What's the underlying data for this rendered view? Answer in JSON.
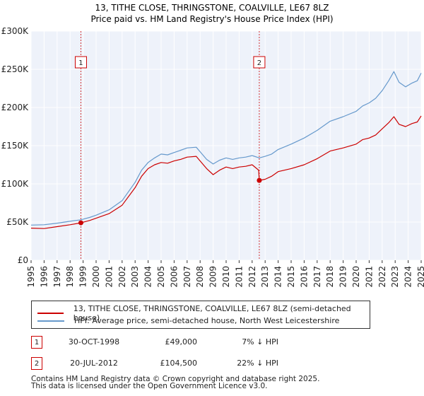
{
  "colors": {
    "property": "#cc0000",
    "hpi": "#6699cc",
    "plot_bg": "#eef2fa",
    "grid": "#ffffff",
    "marker_line": "#cc0000"
  },
  "chart_data": {
    "type": "line",
    "title": "13, TITHE CLOSE, THRINGSTONE, COALVILLE, LE67 8LZ",
    "subtitle": "Price paid vs. HM Land Registry's House Price Index (HPI)",
    "xlabel": "",
    "ylabel": "",
    "xlim": [
      1995,
      2025
    ],
    "ylim": [
      0,
      300000
    ],
    "x_ticks": [
      "1995",
      "1996",
      "1997",
      "1998",
      "1999",
      "2000",
      "2001",
      "2002",
      "2003",
      "2004",
      "2005",
      "2006",
      "2007",
      "2008",
      "2009",
      "2010",
      "2011",
      "2012",
      "2013",
      "2014",
      "2015",
      "2016",
      "2017",
      "2018",
      "2019",
      "2020",
      "2021",
      "2022",
      "2023",
      "2024",
      "2025"
    ],
    "y_ticks": [
      {
        "value": 0,
        "label": "£0"
      },
      {
        "value": 50000,
        "label": "£50K"
      },
      {
        "value": 100000,
        "label": "£100K"
      },
      {
        "value": 150000,
        "label": "£150K"
      },
      {
        "value": 200000,
        "label": "£200K"
      },
      {
        "value": 250000,
        "label": "£250K"
      },
      {
        "value": 300000,
        "label": "£300K"
      }
    ],
    "series": [
      {
        "name": "13, TITHE CLOSE, THRINGSTONE, COALVILLE, LE67 8LZ (semi-detached house)",
        "color": "#cc0000",
        "points": [
          [
            1995,
            42000
          ],
          [
            1996,
            41500
          ],
          [
            1997,
            44000
          ],
          [
            1998,
            46500
          ],
          [
            1998.83,
            49000
          ],
          [
            1999.5,
            52000
          ],
          [
            2000,
            55000
          ],
          [
            2001,
            61000
          ],
          [
            2002,
            72000
          ],
          [
            2003,
            95000
          ],
          [
            2003.5,
            110000
          ],
          [
            2004,
            120000
          ],
          [
            2004.5,
            125000
          ],
          [
            2005,
            128000
          ],
          [
            2005.5,
            127000
          ],
          [
            2006,
            130000
          ],
          [
            2006.5,
            132000
          ],
          [
            2007,
            135000
          ],
          [
            2007.7,
            136000
          ],
          [
            2008,
            130000
          ],
          [
            2008.5,
            120000
          ],
          [
            2009,
            112000
          ],
          [
            2009.5,
            118000
          ],
          [
            2010,
            122000
          ],
          [
            2010.5,
            120000
          ],
          [
            2011,
            122000
          ],
          [
            2011.5,
            123000
          ],
          [
            2012,
            125000
          ],
          [
            2012.5,
            118000
          ],
          [
            2012.55,
            104500
          ],
          [
            2013,
            106000
          ],
          [
            2013.5,
            110000
          ],
          [
            2014,
            116000
          ],
          [
            2015,
            120000
          ],
          [
            2016,
            125000
          ],
          [
            2017,
            133000
          ],
          [
            2018,
            143000
          ],
          [
            2019,
            147000
          ],
          [
            2020,
            152000
          ],
          [
            2020.5,
            158000
          ],
          [
            2021,
            160000
          ],
          [
            2021.5,
            164000
          ],
          [
            2022,
            172000
          ],
          [
            2022.5,
            180000
          ],
          [
            2022.9,
            188000
          ],
          [
            2023.3,
            178000
          ],
          [
            2023.8,
            175000
          ],
          [
            2024.3,
            179000
          ],
          [
            2024.7,
            181000
          ],
          [
            2025,
            189000
          ]
        ]
      },
      {
        "name": "HPI: Average price, semi-detached house, North West Leicestershire",
        "color": "#6699cc",
        "points": [
          [
            1995,
            46000
          ],
          [
            1996,
            46500
          ],
          [
            1997,
            48500
          ],
          [
            1998,
            51000
          ],
          [
            1998.83,
            53000
          ],
          [
            1999.5,
            56000
          ],
          [
            2000,
            59000
          ],
          [
            2001,
            66000
          ],
          [
            2002,
            78000
          ],
          [
            2003,
            102000
          ],
          [
            2003.5,
            118000
          ],
          [
            2004,
            128000
          ],
          [
            2004.5,
            134000
          ],
          [
            2005,
            139000
          ],
          [
            2005.5,
            138000
          ],
          [
            2006,
            141000
          ],
          [
            2006.5,
            144000
          ],
          [
            2007,
            147000
          ],
          [
            2007.7,
            148000
          ],
          [
            2008,
            142000
          ],
          [
            2008.5,
            132000
          ],
          [
            2009,
            126000
          ],
          [
            2009.5,
            131000
          ],
          [
            2010,
            134000
          ],
          [
            2010.5,
            132000
          ],
          [
            2011,
            134000
          ],
          [
            2011.5,
            135000
          ],
          [
            2012,
            137000
          ],
          [
            2012.55,
            134000
          ],
          [
            2013,
            136000
          ],
          [
            2013.5,
            139000
          ],
          [
            2014,
            145000
          ],
          [
            2015,
            152000
          ],
          [
            2016,
            160000
          ],
          [
            2017,
            170000
          ],
          [
            2018,
            182000
          ],
          [
            2019,
            188000
          ],
          [
            2020,
            195000
          ],
          [
            2020.5,
            202000
          ],
          [
            2021,
            206000
          ],
          [
            2021.5,
            212000
          ],
          [
            2022,
            222000
          ],
          [
            2022.5,
            235000
          ],
          [
            2022.9,
            247000
          ],
          [
            2023.3,
            233000
          ],
          [
            2023.8,
            227000
          ],
          [
            2024.3,
            232000
          ],
          [
            2024.7,
            235000
          ],
          [
            2025,
            245000
          ]
        ]
      }
    ],
    "annotations": [
      {
        "label": "1",
        "x": 1998.83,
        "value": 49000
      },
      {
        "label": "2",
        "x": 2012.55,
        "value": 104500
      }
    ]
  },
  "legend": {
    "property_label": "13, TITHE CLOSE, THRINGSTONE, COALVILLE, LE67 8LZ (semi-detached house)",
    "hpi_label": "HPI: Average price, semi-detached house, North West Leicestershire"
  },
  "sales": [
    {
      "num": "1",
      "date": "30-OCT-1998",
      "price": "£49,000",
      "hpi": "7% ↓ HPI"
    },
    {
      "num": "2",
      "date": "20-JUL-2012",
      "price": "£104,500",
      "hpi": "22% ↓ HPI"
    }
  ],
  "footer": {
    "line1": "Contains HM Land Registry data © Crown copyright and database right 2025.",
    "line2": "This data is licensed under the Open Government Licence v3.0."
  }
}
